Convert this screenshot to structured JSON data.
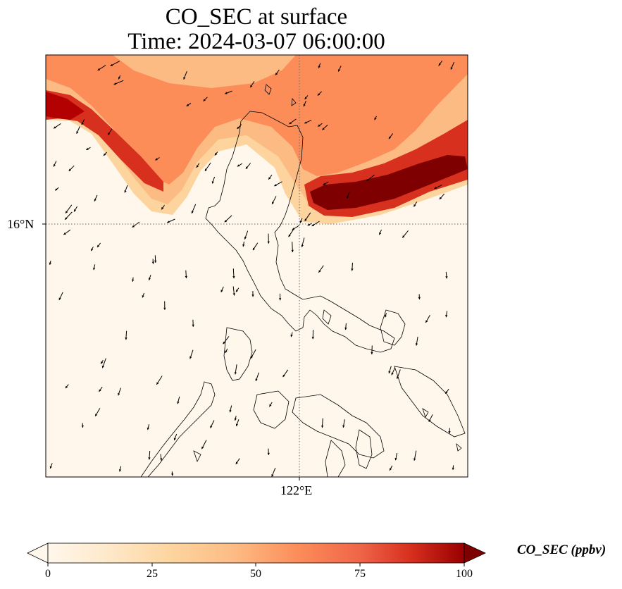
{
  "map": {
    "title": "CO_SEC at surface",
    "subtitle": "Time: 2024-03-07 06:00:00",
    "lat_label": "16°N",
    "lon_label": "122°E",
    "variable": "CO_SEC",
    "units": "ppbv",
    "overlays": [
      "coastline",
      "wind-vectors",
      "lat-lon-gridlines"
    ],
    "colormap": "OrRd",
    "colors": {
      "low": "#fff7ec",
      "mid_low": "#fdd49e",
      "mid": "#fc8d59",
      "high": "#d7301f",
      "max": "#7f0000",
      "coastline": "#000000",
      "gridline": "#888888"
    }
  },
  "colorbar": {
    "label": "CO_SEC (ppbv)",
    "ticks": [
      "0",
      "25",
      "50",
      "75",
      "100"
    ],
    "min": 0,
    "max": 100,
    "extend": "both"
  }
}
